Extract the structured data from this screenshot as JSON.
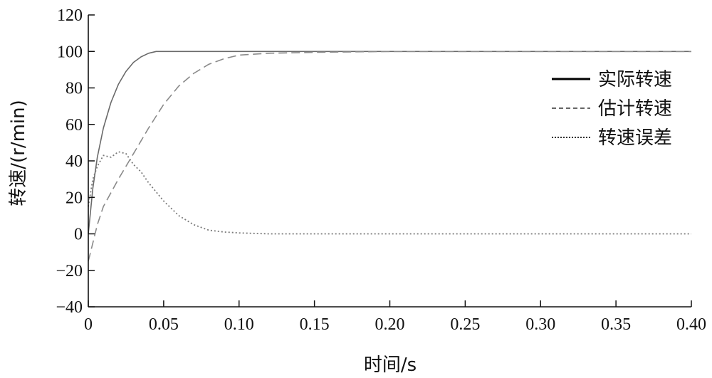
{
  "chart_data": {
    "type": "line",
    "xlabel": "时间/s",
    "ylabel": "转速/(r/min)",
    "xlim": [
      0,
      0.4
    ],
    "ylim": [
      -40,
      120
    ],
    "x_ticks": [
      0,
      0.05,
      0.1,
      0.15,
      0.2,
      0.25,
      0.3,
      0.35,
      0.4
    ],
    "x_tick_labels": [
      "0",
      "0.05",
      "0.10",
      "0.15",
      "0.20",
      "0.25",
      "0.30",
      "0.35",
      "0.40"
    ],
    "y_ticks": [
      -40,
      -20,
      0,
      20,
      40,
      60,
      80,
      100,
      120
    ],
    "y_tick_labels": [
      "−40",
      "−20",
      "0",
      "20",
      "40",
      "60",
      "80",
      "100",
      "120"
    ],
    "legend_position": "right",
    "series": [
      {
        "name": "实际转速",
        "style": "solid",
        "x": [
          0,
          0.003,
          0.006,
          0.01,
          0.015,
          0.02,
          0.025,
          0.03,
          0.035,
          0.04,
          0.045,
          0.05,
          0.06,
          0.1,
          0.2,
          0.3,
          0.4
        ],
        "y": [
          0,
          25,
          42,
          58,
          72,
          82,
          89,
          94,
          97,
          99,
          100,
          100,
          100,
          100,
          100,
          100,
          100
        ]
      },
      {
        "name": "估计转速",
        "style": "dashed",
        "x": [
          0,
          0.003,
          0.006,
          0.01,
          0.02,
          0.03,
          0.04,
          0.05,
          0.06,
          0.07,
          0.08,
          0.09,
          0.1,
          0.12,
          0.15,
          0.2,
          0.3,
          0.4
        ],
        "y": [
          -15,
          -5,
          5,
          15,
          30,
          44,
          58,
          71,
          81,
          88,
          93,
          96,
          98,
          99,
          99.5,
          100,
          100,
          100
        ]
      },
      {
        "name": "转速误差",
        "style": "dotted",
        "x": [
          0,
          0.003,
          0.006,
          0.01,
          0.015,
          0.02,
          0.025,
          0.03,
          0.035,
          0.04,
          0.05,
          0.06,
          0.07,
          0.08,
          0.09,
          0.1,
          0.12,
          0.15,
          0.2,
          0.3,
          0.4
        ],
        "y": [
          15,
          30,
          37,
          43,
          42,
          45,
          44,
          38,
          34,
          28,
          18,
          10,
          5,
          2,
          1,
          0.5,
          0,
          0,
          0,
          0,
          0
        ]
      }
    ]
  }
}
